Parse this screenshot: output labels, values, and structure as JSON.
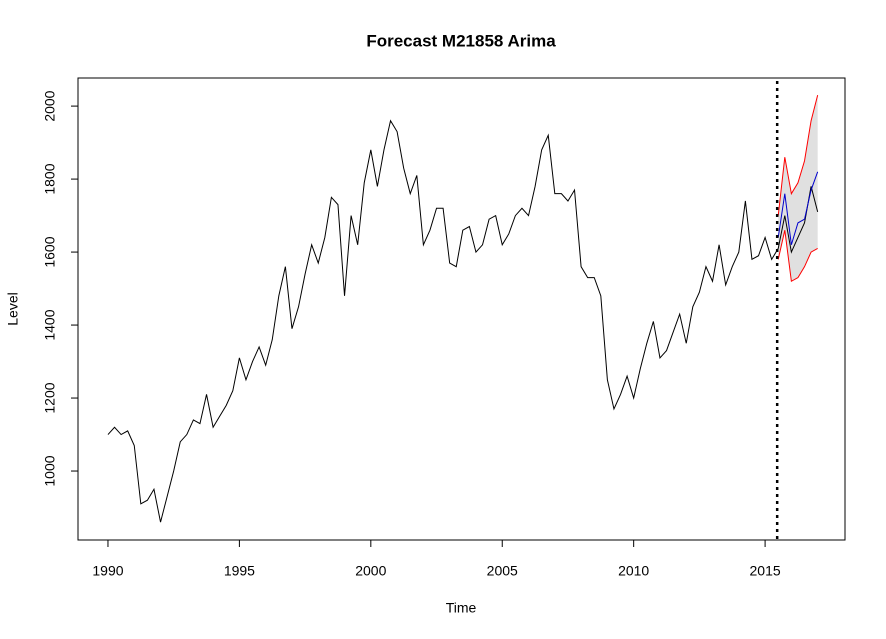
{
  "chart_data": {
    "type": "line",
    "title": "Forecast M21858 Arima",
    "x_label": "Time",
    "y_label": "Level",
    "xlim": [
      1988.86,
      2018.04
    ],
    "ylim": [
      811,
      2077
    ],
    "xticks": [
      1990,
      1995,
      2000,
      2005,
      2010,
      2015
    ],
    "yticks": [
      1000,
      1200,
      1400,
      1600,
      1800,
      2000
    ],
    "vline": 2015.46,
    "band": {
      "color": "#e0e0e0"
    },
    "series": [
      {
        "color": "#000000",
        "x": [
          1990,
          1990.25,
          1990.5,
          1990.75,
          1991,
          1991.25,
          1991.5,
          1991.75,
          1992,
          1992.25,
          1992.5,
          1992.75,
          1993,
          1993.25,
          1993.5,
          1993.75,
          1994,
          1994.25,
          1994.5,
          1994.75,
          1995,
          1995.25,
          1995.5,
          1995.75,
          1996,
          1996.25,
          1996.5,
          1996.75,
          1997,
          1997.25,
          1997.5,
          1997.75,
          1998,
          1998.25,
          1998.5,
          1998.75,
          1999,
          1999.25,
          1999.5,
          1999.75,
          2000,
          2000.25,
          2000.5,
          2000.75,
          2001,
          2001.25,
          2001.5,
          2001.75,
          2002,
          2002.25,
          2002.5,
          2002.75,
          2003,
          2003.25,
          2003.5,
          2003.75,
          2004,
          2004.25,
          2004.5,
          2004.75,
          2005,
          2005.25,
          2005.5,
          2005.75,
          2006,
          2006.25,
          2006.5,
          2006.75,
          2007,
          2007.25,
          2007.5,
          2007.75,
          2008,
          2008.25,
          2008.5,
          2008.75,
          2009,
          2009.25,
          2009.5,
          2009.75,
          2010,
          2010.25,
          2010.5,
          2010.75,
          2011,
          2011.25,
          2011.5,
          2011.75,
          2012,
          2012.25,
          2012.5,
          2012.75,
          2013,
          2013.25,
          2013.5,
          2013.75,
          2014,
          2014.25,
          2014.5,
          2014.75,
          2015,
          2015.25,
          2015.5,
          2015.75,
          2016,
          2016.25,
          2016.5,
          2016.75,
          2017
        ],
        "values": [
          1100,
          1120,
          1100,
          1110,
          1070,
          910,
          920,
          950,
          860,
          930,
          1000,
          1080,
          1100,
          1140,
          1130,
          1210,
          1120,
          1150,
          1180,
          1220,
          1310,
          1250,
          1300,
          1340,
          1290,
          1360,
          1480,
          1560,
          1390,
          1450,
          1540,
          1620,
          1570,
          1640,
          1750,
          1730,
          1480,
          1700,
          1620,
          1790,
          1880,
          1780,
          1880,
          1960,
          1930,
          1830,
          1760,
          1810,
          1620,
          1660,
          1720,
          1720,
          1570,
          1560,
          1660,
          1670,
          1600,
          1620,
          1690,
          1700,
          1620,
          1650,
          1700,
          1720,
          1700,
          1780,
          1880,
          1920,
          1760,
          1760,
          1740,
          1770,
          1560,
          1530,
          1530,
          1480,
          1250,
          1170,
          1210,
          1260,
          1200,
          1280,
          1350,
          1410,
          1310,
          1330,
          1380,
          1430,
          1350,
          1450,
          1490,
          1560,
          1520,
          1620,
          1510,
          1560,
          1600,
          1740,
          1580,
          1590,
          1640,
          1580,
          1610,
          1700,
          1600,
          1640,
          1680,
          1780,
          1710
        ]
      },
      {
        "color": "#0000cd",
        "x": [
          2015.5,
          2015.75,
          2016,
          2016.25,
          2016.5,
          2016.75,
          2017
        ],
        "values": [
          1640,
          1760,
          1620,
          1680,
          1690,
          1770,
          1820
        ]
      },
      {
        "color": "#ff0000",
        "x": [
          2015.5,
          2015.75,
          2016,
          2016.25,
          2016.5,
          2016.75,
          2017
        ],
        "values": [
          1700,
          1860,
          1760,
          1790,
          1850,
          1960,
          2030
        ]
      },
      {
        "color": "#ff0000",
        "x": [
          2015.5,
          2015.75,
          2016,
          2016.25,
          2016.5,
          2016.75,
          2017
        ],
        "values": [
          1580,
          1660,
          1520,
          1530,
          1560,
          1600,
          1610
        ]
      }
    ]
  }
}
